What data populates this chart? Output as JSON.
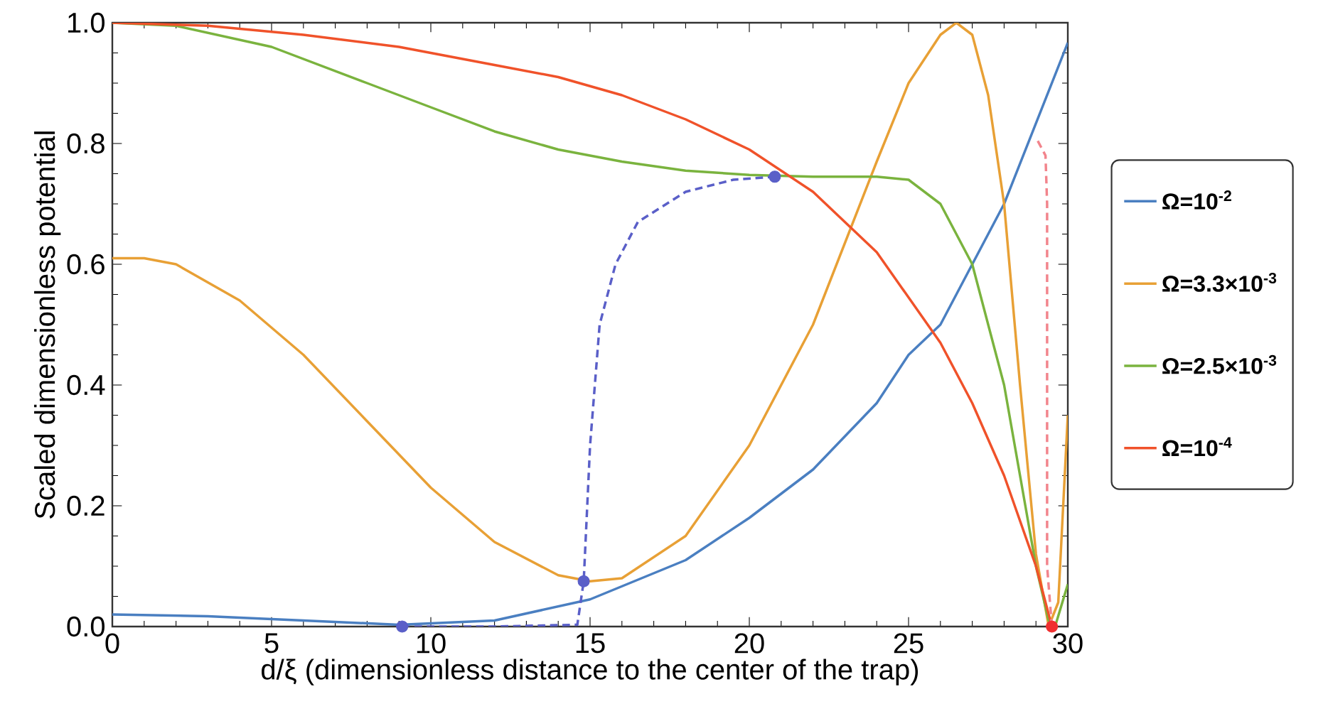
{
  "chart_data": {
    "type": "line",
    "xlabel": "d/ξ (dimensionless distance to the center of the trap)",
    "ylabel": "Scaled dimensionless potential",
    "xlim": [
      0,
      30
    ],
    "ylim": [
      0,
      1
    ],
    "xticks": [
      0,
      5,
      10,
      15,
      20,
      25,
      30
    ],
    "yticks": [
      {
        "value": 0,
        "label": "0.0"
      },
      {
        "value": 0.2,
        "label": "0.2"
      },
      {
        "value": 0.4,
        "label": "0.4"
      },
      {
        "value": 0.6,
        "label": "0.6"
      },
      {
        "value": 0.8,
        "label": "0.8"
      },
      {
        "value": 1,
        "label": "1.0"
      }
    ],
    "legend": "right",
    "grid": false,
    "series": [
      {
        "name": "Ω=10$^{-2}$",
        "color": "#4a7fc1",
        "line_style": "solid",
        "marker": "none",
        "x": [
          0,
          3,
          6,
          9,
          12,
          15,
          18,
          20,
          22,
          24,
          25,
          26,
          28,
          30
        ],
        "values": [
          0.02,
          0.017,
          0.01,
          0.003,
          0.01,
          0.045,
          0.11,
          0.18,
          0.26,
          0.37,
          0.45,
          0.5,
          0.7,
          0.967
        ]
      },
      {
        "name": "Ω=3.3×10$^{-3}$",
        "color": "#e8a035",
        "line_style": "solid",
        "marker": "none",
        "x": [
          0,
          1,
          2,
          4,
          6,
          8,
          10,
          12,
          14,
          15,
          16,
          18,
          20,
          22,
          24,
          25,
          26,
          26.5,
          27,
          27.5,
          28,
          28.5,
          29,
          29.4,
          29.7,
          30
        ],
        "values": [
          0.61,
          0.61,
          0.6,
          0.54,
          0.45,
          0.34,
          0.23,
          0.14,
          0.085,
          0.075,
          0.08,
          0.15,
          0.3,
          0.5,
          0.77,
          0.9,
          0.98,
          1.0,
          0.98,
          0.88,
          0.7,
          0.4,
          0.12,
          0.0,
          0.04,
          0.35
        ]
      },
      {
        "name": "Ω=2.5×10$^{-3}$",
        "color": "#7ab33e",
        "line_style": "solid",
        "marker": "none",
        "x": [
          0,
          2,
          5,
          8,
          10,
          12,
          14,
          16,
          18,
          20,
          22,
          24,
          25,
          26,
          27,
          28,
          28.5,
          29,
          29.4,
          29.6,
          30
        ],
        "values": [
          1.0,
          0.995,
          0.96,
          0.9,
          0.86,
          0.82,
          0.79,
          0.77,
          0.755,
          0.748,
          0.745,
          0.745,
          0.74,
          0.7,
          0.6,
          0.4,
          0.25,
          0.1,
          0.01,
          0.0,
          0.07
        ]
      },
      {
        "name": "Ω=10$^{-4}$",
        "color": "#f0522a",
        "line_style": "solid",
        "marker": "none",
        "x": [
          0,
          3,
          6,
          9,
          12,
          14,
          16,
          18,
          20,
          22,
          24,
          26,
          27,
          28,
          29,
          29.5
        ],
        "values": [
          1.0,
          0.995,
          0.98,
          0.96,
          0.93,
          0.91,
          0.88,
          0.84,
          0.79,
          0.72,
          0.62,
          0.47,
          0.37,
          0.25,
          0.1,
          0.0
        ]
      },
      {
        "color": "#5a5fc8",
        "line_style": "dashed",
        "marker": "none",
        "x": [
          9.1,
          12,
          14.6,
          14.8,
          15.0,
          15.3,
          15.8,
          16.5,
          18,
          19.5,
          20.8
        ],
        "values": [
          0.0,
          0.0,
          0.003,
          0.075,
          0.3,
          0.5,
          0.6,
          0.67,
          0.72,
          0.74,
          0.745
        ]
      },
      {
        "color": "#f2848c",
        "line_style": "dashed",
        "marker": "none",
        "x": [
          29.5,
          29.35,
          29.35,
          29.3,
          29.0
        ],
        "values": [
          0.0,
          0.1,
          0.7,
          0.78,
          0.81
        ]
      },
      {
        "type": "scatter",
        "color": "#5a5fc8",
        "marker": "circle",
        "x": [
          9.1,
          14.8,
          20.8
        ],
        "values": [
          0.0,
          0.075,
          0.745
        ]
      },
      {
        "type": "scatter",
        "color": "#f03030",
        "marker": "circle",
        "x": [
          29.5
        ],
        "values": [
          0.0
        ]
      }
    ]
  }
}
